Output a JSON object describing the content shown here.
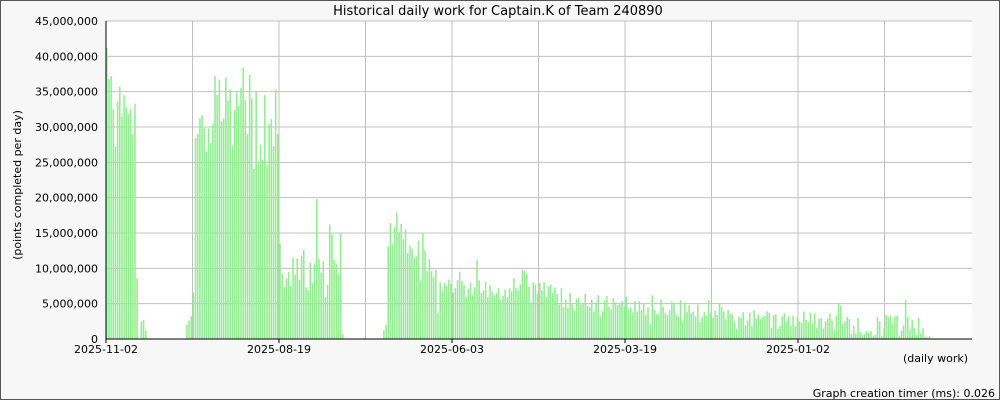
{
  "colors": {
    "bar": "#90ee90",
    "plot_background": "#ffffff",
    "frame_background": "#f7f7f7",
    "grid": "#c0c0c0"
  },
  "footer": {
    "timer_text": "Graph creation timer (ms): 0.026"
  },
  "chart_data": {
    "type": "bar",
    "title": "Historical daily work for Captain.K of Team 240890",
    "xlabel": "(daily work)",
    "ylabel": "(points completed per day)",
    "ylim": [
      0,
      45000000
    ],
    "grid": true,
    "x_order": "newest-left",
    "x_ticks": [
      "2025-11-02",
      "2025-08-19",
      "2025-06-03",
      "2025-03-19",
      "2025-01-02"
    ],
    "y_ticks": [
      "0",
      "5,000,000",
      "10,000,000",
      "15,000,000",
      "20,000,000",
      "25,000,000",
      "30,000,000",
      "35,000,000",
      "40,000,000",
      "45,000,000"
    ],
    "values": [
      41200000,
      36800000,
      37200000,
      32500000,
      27200000,
      33600000,
      35700000,
      31500000,
      34500000,
      32800000,
      31800000,
      32500000,
      29000000,
      33300000,
      8600000,
      0,
      2500000,
      2700000,
      1200000,
      0,
      0,
      0,
      0,
      0,
      0,
      0,
      0,
      0,
      0,
      0,
      0,
      0,
      0,
      0,
      0,
      0,
      0,
      2000000,
      2600000,
      3200000,
      6600000,
      28400000,
      29000000,
      31200000,
      31700000,
      29800000,
      26500000,
      29800000,
      27700000,
      30400000,
      37200000,
      34500000,
      36700000,
      30800000,
      31200000,
      37000000,
      33700000,
      35300000,
      27300000,
      32400000,
      34900000,
      33000000,
      35500000,
      38400000,
      33800000,
      29000000,
      37400000,
      34000000,
      24100000,
      35000000,
      24800000,
      27500000,
      25400000,
      34500000,
      24600000,
      30400000,
      31100000,
      27300000,
      35300000,
      29000000,
      13500000,
      9200000,
      7400000,
      8500000,
      9500000,
      7500000,
      11500000,
      9100000,
      11400000,
      8400000,
      11800000,
      12600000,
      7300000,
      6900000,
      10800000,
      7900000,
      10700000,
      19800000,
      11400000,
      9400000,
      11000000,
      5900000,
      7700000,
      16200000,
      14800000,
      11200000,
      10600000,
      9200000,
      14900000,
      700000,
      0,
      0,
      0,
      0,
      0,
      0,
      0,
      0,
      0,
      0,
      0,
      0,
      0,
      0,
      0,
      0,
      0,
      0,
      1200000,
      2000000,
      13100000,
      16400000,
      13400000,
      15800000,
      17900000,
      15100000,
      16300000,
      14100000,
      15500000,
      12100000,
      13200000,
      12800000,
      11500000,
      11700000,
      13900000,
      8200000,
      14900000,
      12500000,
      9600000,
      11300000,
      9600000,
      8800000,
      9800000,
      3600000,
      8000000,
      6800000,
      7900000,
      7500000,
      8400000,
      7800000,
      6600000,
      7200000,
      8300000,
      9500000,
      8200000,
      7600000,
      5900000,
      7100000,
      8000000,
      6300000,
      7300000,
      11200000,
      8300000,
      6500000,
      6900000,
      8100000,
      5900000,
      7600000,
      6700000,
      6200000,
      6500000,
      7200000,
      5500000,
      6100000,
      7000000,
      5900000,
      7200000,
      6800000,
      8600000,
      7200000,
      6900000,
      7700000,
      9800000,
      9700000,
      9200000,
      7400000,
      5200000,
      8000000,
      7700000,
      6400000,
      7900000,
      6900000,
      8000000,
      5900000,
      7400000,
      7700000,
      6500000,
      7300000,
      6400000,
      4900000,
      7200000,
      4500000,
      5600000,
      4400000,
      6500000,
      4900000,
      4000000,
      5700000,
      5800000,
      4800000,
      5100000,
      6400000,
      4700000,
      4500000,
      5600000,
      3900000,
      5200000,
      6200000,
      3200000,
      4000000,
      5500000,
      6100000,
      4600000,
      4200000,
      5800000,
      5200000,
      4800000,
      4900000,
      5300000,
      4600000,
      6000000,
      4200000,
      4400000,
      3700000,
      5400000,
      3900000,
      5400000,
      4100000,
      5000000,
      3400000,
      4500000,
      2100000,
      6200000,
      4100000,
      3500000,
      3600000,
      5600000,
      4500000,
      3700000,
      3400000,
      4100000,
      5300000,
      5100000,
      3500000,
      3200000,
      5500000,
      2500000,
      5200000,
      3800000,
      4800000,
      3700000,
      3900000,
      3200000,
      4900000,
      2400000,
      3100000,
      3800000,
      3300000,
      5500000,
      3600000,
      3000000,
      4000000,
      3400000,
      5000000,
      4500000,
      3900000,
      2800000,
      4100000,
      3600000,
      3500000,
      2500000,
      1400000,
      3200000,
      3000000,
      3800000,
      1900000,
      2600000,
      3700000,
      1800000,
      4100000,
      2900000,
      3500000,
      2800000,
      3100000,
      3300000,
      3900000,
      3700000,
      1600000,
      3400000,
      3500000,
      1400000,
      1900000,
      3200000,
      3600000,
      2500000,
      3200000,
      1900000,
      3300000,
      1800000,
      3100000,
      2500000,
      2300000,
      3900000,
      2700000,
      2400000,
      3700000,
      2200000,
      3600000,
      1600000,
      2900000,
      3000000,
      1500000,
      2500000,
      2900000,
      3600000,
      2600000,
      1300000,
      3300000,
      5100000,
      4700000,
      2200000,
      2500000,
      3100000,
      2800000,
      700000,
      1900000,
      800000,
      3000000,
      1000000,
      600000,
      700000,
      1100000,
      900000,
      1100000,
      400000,
      600000,
      3100000,
      2500000,
      400000,
      1500000,
      3400000,
      3100000,
      3300000,
      2200000,
      3200000,
      3300000,
      400000,
      1200000,
      1900000,
      5500000,
      3100000,
      1300000,
      2700000,
      1600000,
      600000,
      3000000,
      800000,
      1500000,
      300000,
      200000,
      400000,
      0,
      0,
      0,
      0,
      0,
      0,
      0,
      0,
      0,
      0,
      0,
      0,
      0,
      0,
      0,
      0,
      0,
      0,
      0
    ]
  }
}
